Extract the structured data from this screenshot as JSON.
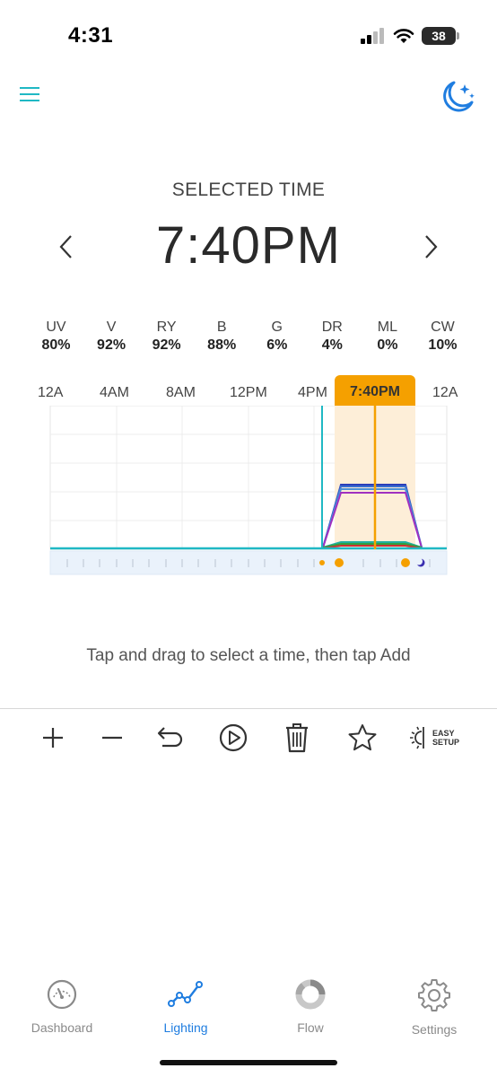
{
  "status": {
    "time": "4:31",
    "battery": "38"
  },
  "header": {
    "selected_label": "SELECTED TIME",
    "selected_time": "7:40PM"
  },
  "channels": [
    {
      "name": "UV",
      "value": "80%"
    },
    {
      "name": "V",
      "value": "92%"
    },
    {
      "name": "RY",
      "value": "92%"
    },
    {
      "name": "B",
      "value": "88%"
    },
    {
      "name": "G",
      "value": "6%"
    },
    {
      "name": "DR",
      "value": "4%"
    },
    {
      "name": "ML",
      "value": "0%"
    },
    {
      "name": "CW",
      "value": "10%"
    }
  ],
  "timeline": {
    "ticks": [
      "12A",
      "4AM",
      "8AM",
      "12PM",
      "4PM",
      "12A"
    ],
    "selected_badge": "7:40PM"
  },
  "hint": "Tap and drag to select a time, then tap Add",
  "toolbar": {
    "easy_line1": "EASY",
    "easy_line2": "SETUP"
  },
  "nav": {
    "dashboard": "Dashboard",
    "lighting": "Lighting",
    "flow": "Flow",
    "settings": "Settings"
  },
  "colors": {
    "accent_teal": "#1fb8c4",
    "accent_blue": "#1f7de0",
    "orange": "#f5a000"
  }
}
